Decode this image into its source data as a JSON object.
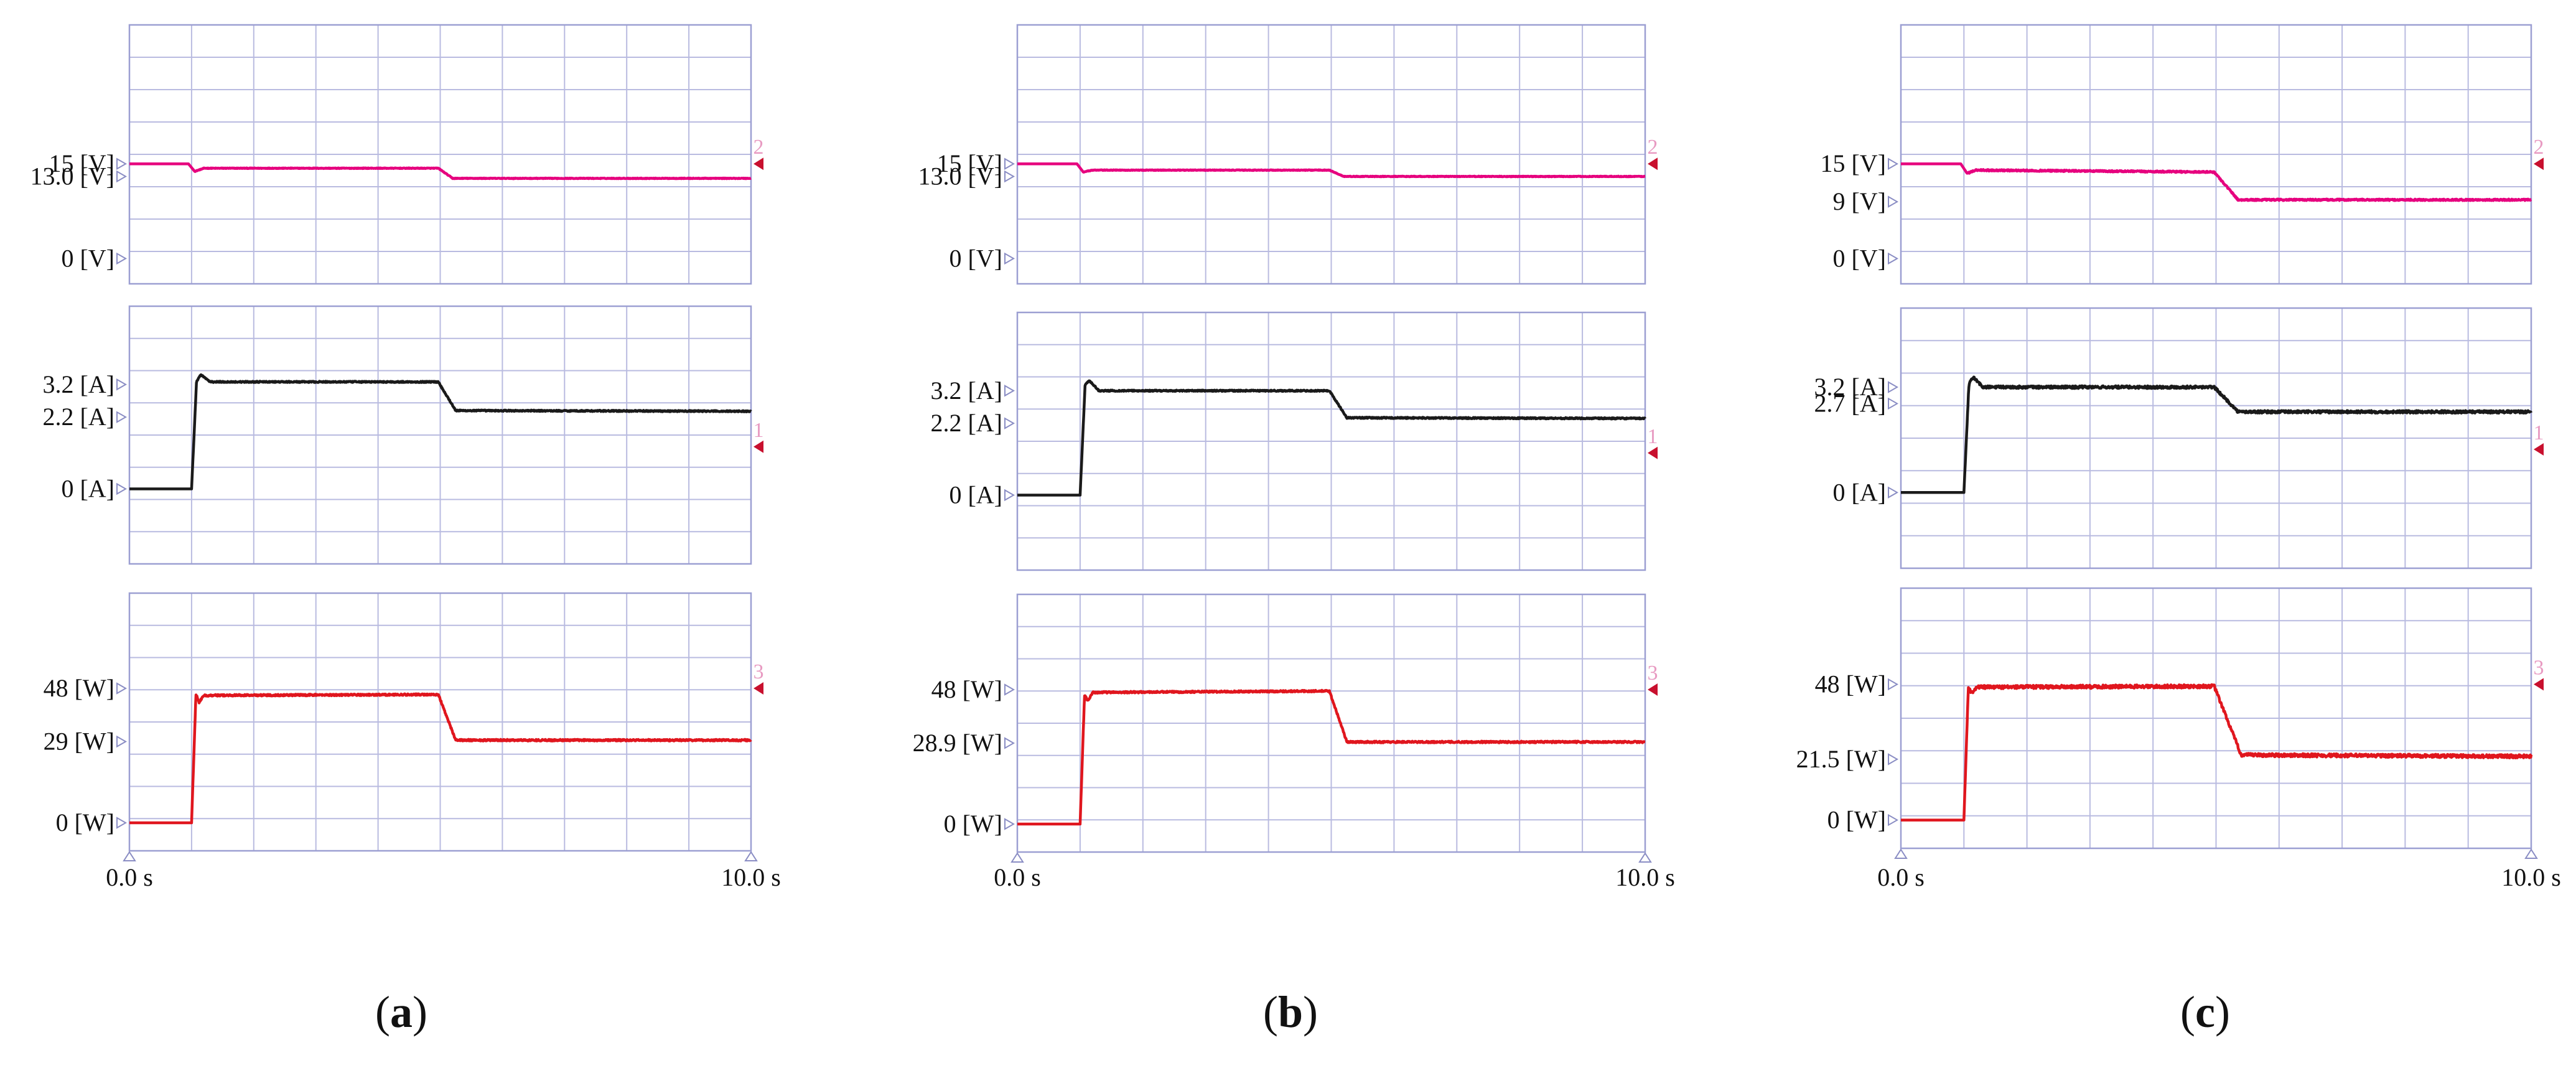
{
  "chart_data": [
    {
      "type": "line",
      "panel_label": "a",
      "x_axis": {
        "range": [
          0,
          10
        ],
        "unit": "s",
        "ticks": [
          {
            "value": 0,
            "label": "0.0 s"
          },
          {
            "value": 10,
            "label": "10.0 s"
          }
        ]
      },
      "subplots": [
        {
          "quantity": "voltage",
          "channel": "2",
          "color": "#e6007e",
          "ylim": [
            -4,
            37
          ],
          "y_marks": [
            {
              "value": 15,
              "label": "15 [V]"
            },
            {
              "value": 13,
              "label": "13.0 [V]"
            },
            {
              "value": 0,
              "label": "0 [V]"
            }
          ],
          "series": [
            {
              "points": [
                [
                  0,
                  15
                ],
                [
                  0.95,
                  15
                ],
                [
                  1.05,
                  13.8
                ],
                [
                  1.2,
                  14.3
                ],
                [
                  4.97,
                  14.3
                ],
                [
                  5.2,
                  12.7
                ],
                [
                  10,
                  12.7
                ]
              ],
              "noise": 0.05
            }
          ]
        },
        {
          "quantity": "current",
          "channel": "1",
          "color": "#1a1a1a",
          "ylim": [
            -2.3,
            5.6
          ],
          "y_marks": [
            {
              "value": 3.2,
              "label": "3.2 [A]"
            },
            {
              "value": 2.2,
              "label": "2.2 [A]"
            },
            {
              "value": 0,
              "label": "0 [A]"
            }
          ],
          "series": [
            {
              "points": [
                [
                  0,
                  0
                ],
                [
                  1.0,
                  0
                ],
                [
                  1.08,
                  3.3
                ],
                [
                  1.15,
                  3.5
                ],
                [
                  1.3,
                  3.28
                ],
                [
                  4.97,
                  3.28
                ],
                [
                  5.25,
                  2.4
                ],
                [
                  10,
                  2.38
                ]
              ],
              "noise": 0.02
            }
          ]
        },
        {
          "quantity": "power",
          "channel": "3",
          "color": "#e0161e",
          "ylim": [
            -10,
            82
          ],
          "y_marks": [
            {
              "value": 48,
              "label": "48 [W]"
            },
            {
              "value": 29,
              "label": "29 [W]"
            },
            {
              "value": 0,
              "label": "0 [W]"
            }
          ],
          "series": [
            {
              "points": [
                [
                  0,
                  0
                ],
                [
                  1.0,
                  0
                ],
                [
                  1.07,
                  46
                ],
                [
                  1.12,
                  43
                ],
                [
                  1.2,
                  45.5
                ],
                [
                  4.97,
                  45.8
                ],
                [
                  5.25,
                  29.5
                ],
                [
                  10,
                  29.5
                ]
              ],
              "noise": 0.3
            }
          ]
        }
      ]
    },
    {
      "type": "line",
      "panel_label": "b",
      "x_axis": {
        "range": [
          0,
          10
        ],
        "unit": "s",
        "ticks": [
          {
            "value": 0,
            "label": "0.0 s"
          },
          {
            "value": 10,
            "label": "10.0 s"
          }
        ]
      },
      "subplots": [
        {
          "quantity": "voltage",
          "channel": "2",
          "color": "#e6007e",
          "ylim": [
            -4,
            37
          ],
          "y_marks": [
            {
              "value": 15,
              "label": "15 [V]"
            },
            {
              "value": 13,
              "label": "13.0 [V]"
            },
            {
              "value": 0,
              "label": "0 [V]"
            }
          ],
          "series": [
            {
              "points": [
                [
                  0,
                  15
                ],
                [
                  0.95,
                  15
                ],
                [
                  1.05,
                  13.7
                ],
                [
                  1.2,
                  14.0
                ],
                [
                  4.97,
                  14.0
                ],
                [
                  5.2,
                  13.0
                ],
                [
                  10,
                  13.0
                ]
              ],
              "noise": 0.05
            }
          ]
        },
        {
          "quantity": "current",
          "channel": "1",
          "color": "#1a1a1a",
          "ylim": [
            -2.3,
            5.6
          ],
          "y_marks": [
            {
              "value": 3.2,
              "label": "3.2 [A]"
            },
            {
              "value": 2.2,
              "label": "2.2 [A]"
            },
            {
              "value": 0,
              "label": "0 [A]"
            }
          ],
          "series": [
            {
              "points": [
                [
                  0,
                  0
                ],
                [
                  1.0,
                  0
                ],
                [
                  1.08,
                  3.4
                ],
                [
                  1.15,
                  3.5
                ],
                [
                  1.3,
                  3.2
                ],
                [
                  4.97,
                  3.2
                ],
                [
                  5.25,
                  2.37
                ],
                [
                  10,
                  2.35
                ]
              ],
              "noise": 0.02
            }
          ]
        },
        {
          "quantity": "power",
          "channel": "3",
          "color": "#e0161e",
          "ylim": [
            -10,
            82
          ],
          "y_marks": [
            {
              "value": 48,
              "label": "48 [W]"
            },
            {
              "value": 28.9,
              "label": "28.9 [W]"
            },
            {
              "value": 0,
              "label": "0 [W]"
            }
          ],
          "series": [
            {
              "points": [
                [
                  0,
                  0
                ],
                [
                  1.0,
                  0
                ],
                [
                  1.07,
                  46
                ],
                [
                  1.12,
                  44
                ],
                [
                  1.2,
                  47
                ],
                [
                  4.97,
                  47.5
                ],
                [
                  5.25,
                  29.3
                ],
                [
                  10,
                  29.3
                ]
              ],
              "noise": 0.3
            }
          ]
        }
      ]
    },
    {
      "type": "line",
      "panel_label": "c",
      "x_axis": {
        "range": [
          0,
          10
        ],
        "unit": "s",
        "ticks": [
          {
            "value": 0,
            "label": "0.0 s"
          },
          {
            "value": 10,
            "label": "10.0 s"
          }
        ]
      },
      "subplots": [
        {
          "quantity": "voltage",
          "channel": "2",
          "color": "#e6007e",
          "ylim": [
            -4,
            37
          ],
          "y_marks": [
            {
              "value": 15,
              "label": "15 [V]"
            },
            {
              "value": 9,
              "label": "9 [V]"
            },
            {
              "value": 0,
              "label": "0 [V]"
            }
          ],
          "series": [
            {
              "points": [
                [
                  0,
                  15
                ],
                [
                  0.95,
                  15
                ],
                [
                  1.05,
                  13.5
                ],
                [
                  1.2,
                  14.0
                ],
                [
                  4.97,
                  13.7
                ],
                [
                  5.35,
                  9.3
                ],
                [
                  10,
                  9.3
                ]
              ],
              "noise": 0.12
            }
          ]
        },
        {
          "quantity": "current",
          "channel": "1",
          "color": "#1a1a1a",
          "ylim": [
            -2.3,
            5.6
          ],
          "y_marks": [
            {
              "value": 3.2,
              "label": "3.2 [A]"
            },
            {
              "value": 2.7,
              "label": "2.7 [A]"
            },
            {
              "value": 0,
              "label": "0 [A]"
            }
          ],
          "series": [
            {
              "points": [
                [
                  0,
                  0
                ],
                [
                  1.0,
                  0
                ],
                [
                  1.08,
                  3.3
                ],
                [
                  1.15,
                  3.5
                ],
                [
                  1.3,
                  3.2
                ],
                [
                  4.97,
                  3.2
                ],
                [
                  5.35,
                  2.45
                ],
                [
                  10,
                  2.45
                ]
              ],
              "noise": 0.04
            }
          ]
        },
        {
          "quantity": "power",
          "channel": "3",
          "color": "#e0161e",
          "ylim": [
            -10,
            82
          ],
          "y_marks": [
            {
              "value": 48,
              "label": "48 [W]"
            },
            {
              "value": 21.5,
              "label": "21.5 [W]"
            },
            {
              "value": 0,
              "label": "0 [W]"
            }
          ],
          "series": [
            {
              "points": [
                [
                  0,
                  0
                ],
                [
                  1.0,
                  0
                ],
                [
                  1.07,
                  47
                ],
                [
                  1.12,
                  45
                ],
                [
                  1.2,
                  47
                ],
                [
                  4.97,
                  47.3
                ],
                [
                  5.4,
                  23
                ],
                [
                  10,
                  22.5
                ]
              ],
              "noise": 0.6
            }
          ]
        }
      ]
    }
  ],
  "colors": {
    "grid": "#b9bbe0",
    "frame": "#9c9fd2",
    "marker_outline": "#8a8dc4",
    "right_marker": "#c8102e",
    "channel_label": "#e89bc2"
  },
  "icons": {
    "left_marker": "hollow-triangle-right",
    "right_marker": "filled-triangle-left",
    "time_marker": "hollow-triangle-up"
  }
}
